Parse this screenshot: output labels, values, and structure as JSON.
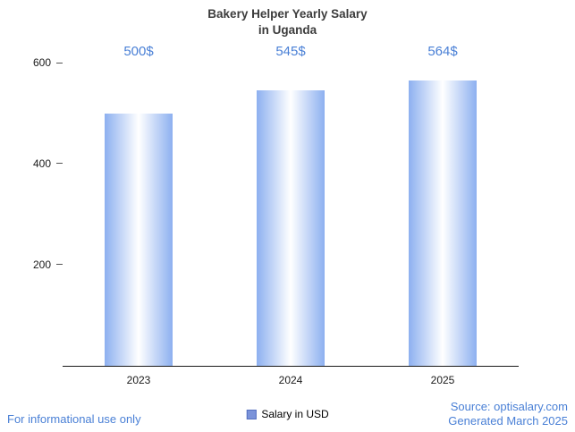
{
  "chart_data": {
    "type": "bar",
    "title": "Bakery Helper Yearly Salary in Uganda",
    "title_lines": [
      "Bakery Helper Yearly Salary",
      "in Uganda"
    ],
    "categories": [
      "2023",
      "2024",
      "2025"
    ],
    "values": [
      500,
      545,
      564
    ],
    "value_labels": [
      "500$",
      "545$",
      "564$"
    ],
    "ylim": [
      0,
      600
    ],
    "yticks": [
      200,
      400,
      600
    ],
    "grid": false,
    "legend": "Salary in USD",
    "legend_position": "bottom",
    "xlabel": "",
    "ylabel": ""
  },
  "footer": {
    "left": "For informational use only",
    "source": "Source: optisalary.com",
    "generated": "Generated March 2025"
  },
  "colors": {
    "bar_edge": "#8db0f0",
    "bar_center": "#ffffff",
    "value_label": "#4a80d6",
    "footer_text": "#4a80d6",
    "legend_swatch": "#7b93da",
    "title_text": "#3c3c3c"
  }
}
